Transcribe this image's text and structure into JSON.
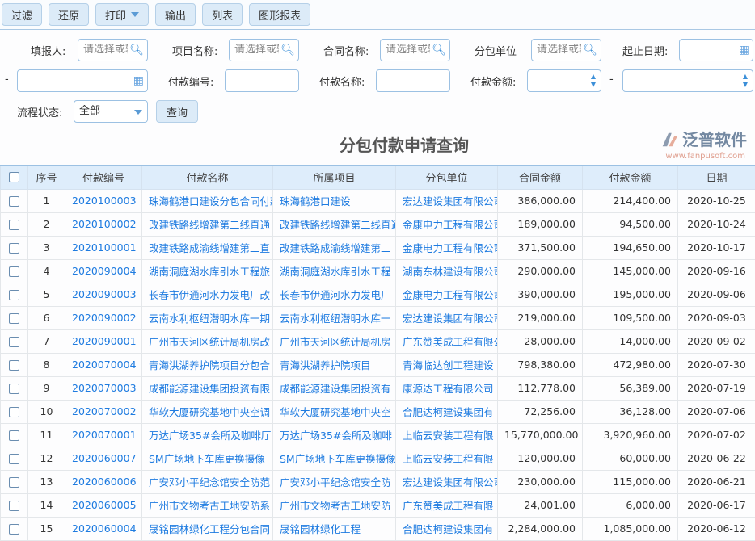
{
  "toolbar": {
    "filter": "过滤",
    "reset": "还原",
    "print": "打印",
    "export": "输出",
    "list": "列表",
    "chart_report": "图形报表"
  },
  "filters": {
    "reporter_label": "填报人:",
    "reporter_placeholder": "请选择或输",
    "project_label": "项目名称:",
    "project_placeholder": "请选择或输",
    "contract_label": "合同名称:",
    "contract_placeholder": "请选择或输",
    "sub_label": "分包单位",
    "sub_placeholder": "请选择或输",
    "date_label": "起止日期:",
    "dash": "-",
    "pay_no_label": "付款编号:",
    "pay_name_label": "付款名称:",
    "amount_label": "付款金额:",
    "status_label": "流程状态:",
    "status_value": "全部",
    "query": "查询"
  },
  "page_title": "分包付款申请查询",
  "table": {
    "headers": [
      "序号",
      "付款编号",
      "付款名称",
      "所属项目",
      "分包单位",
      "合同金额",
      "付款金额",
      "日期"
    ],
    "rows": [
      [
        "1",
        "2020100003",
        "珠海鹤港口建设分包合同付款",
        "珠海鹤港口建设",
        "宏达建设集团有限公司",
        "386,000.00",
        "214,400.00",
        "2020-10-25"
      ],
      [
        "2",
        "2020100002",
        "改建铁路线增建第二线直通",
        "改建铁路线增建第二线直通",
        "金康电力工程有限公司",
        "189,000.00",
        "94,500.00",
        "2020-10-24"
      ],
      [
        "3",
        "2020100001",
        "改建铁路成渝线增建第二直",
        "改建铁路成渝线增建第二",
        "金康电力工程有限公司",
        "371,500.00",
        "194,650.00",
        "2020-10-17"
      ],
      [
        "4",
        "2020090004",
        "湖南洞庭湖水库引水工程旅",
        "湖南洞庭湖水库引水工程",
        "湖南东林建设有限公司",
        "290,000.00",
        "145,000.00",
        "2020-09-16"
      ],
      [
        "5",
        "2020090003",
        "长春市伊通河水力发电厂改",
        "长春市伊通河水力发电厂",
        "金康电力工程有限公司",
        "390,000.00",
        "195,000.00",
        "2020-09-06"
      ],
      [
        "6",
        "2020090002",
        "云南水利枢纽潜明水库一期",
        "云南水利枢纽潜明水库一",
        "宏达建设集团有限公司",
        "219,000.00",
        "109,500.00",
        "2020-09-03"
      ],
      [
        "7",
        "2020090001",
        "广州市天河区统计局机房改",
        "广州市天河区统计局机房",
        "广东赞美成工程有限公司",
        "28,000.00",
        "14,000.00",
        "2020-09-02"
      ],
      [
        "8",
        "2020070004",
        "青海洪湖养护院项目分包合",
        "青海洪湖养护院项目",
        "青海临达创工程建设",
        "798,380.00",
        "472,980.00",
        "2020-07-30"
      ],
      [
        "9",
        "2020070003",
        "成都能源建设集团投资有限",
        "成都能源建设集团投资有",
        "康源达工程有限公司",
        "112,778.00",
        "56,389.00",
        "2020-07-19"
      ],
      [
        "10",
        "2020070002",
        "华软大厦研究基地中央空调",
        "华软大厦研究基地中央空",
        "合肥达柯建设集团有",
        "72,256.00",
        "36,128.00",
        "2020-07-06"
      ],
      [
        "11",
        "2020070001",
        "万达广场35#会所及咖啡厅",
        "万达广场35#会所及咖啡",
        "上临云安装工程有限",
        "15,770,000.00",
        "3,920,960.00",
        "2020-07-02"
      ],
      [
        "12",
        "2020060007",
        "SM广场地下车库更换摄像",
        "SM广场地下车库更换摄像",
        "上临云安装工程有限",
        "120,000.00",
        "60,000.00",
        "2020-06-22"
      ],
      [
        "13",
        "2020060006",
        "广安邓小平纪念馆安全防范",
        "广安邓小平纪念馆安全防",
        "宏达建设集团有限公司",
        "230,000.00",
        "115,000.00",
        "2020-06-21"
      ],
      [
        "14",
        "2020060005",
        "广州市文物考古工地安防系",
        "广州市文物考古工地安防",
        "广东赞美成工程有限",
        "24,001.00",
        "6,000.00",
        "2020-06-17"
      ],
      [
        "15",
        "2020060004",
        "晟铭园林绿化工程分包合同",
        "晟铭园林绿化工程",
        "合肥达柯建设集团有",
        "2,284,000.00",
        "1,085,000.00",
        "2020-06-12"
      ]
    ]
  },
  "watermark": {
    "brand": "泛普软件",
    "url": "www.fanpusoft.com"
  }
}
